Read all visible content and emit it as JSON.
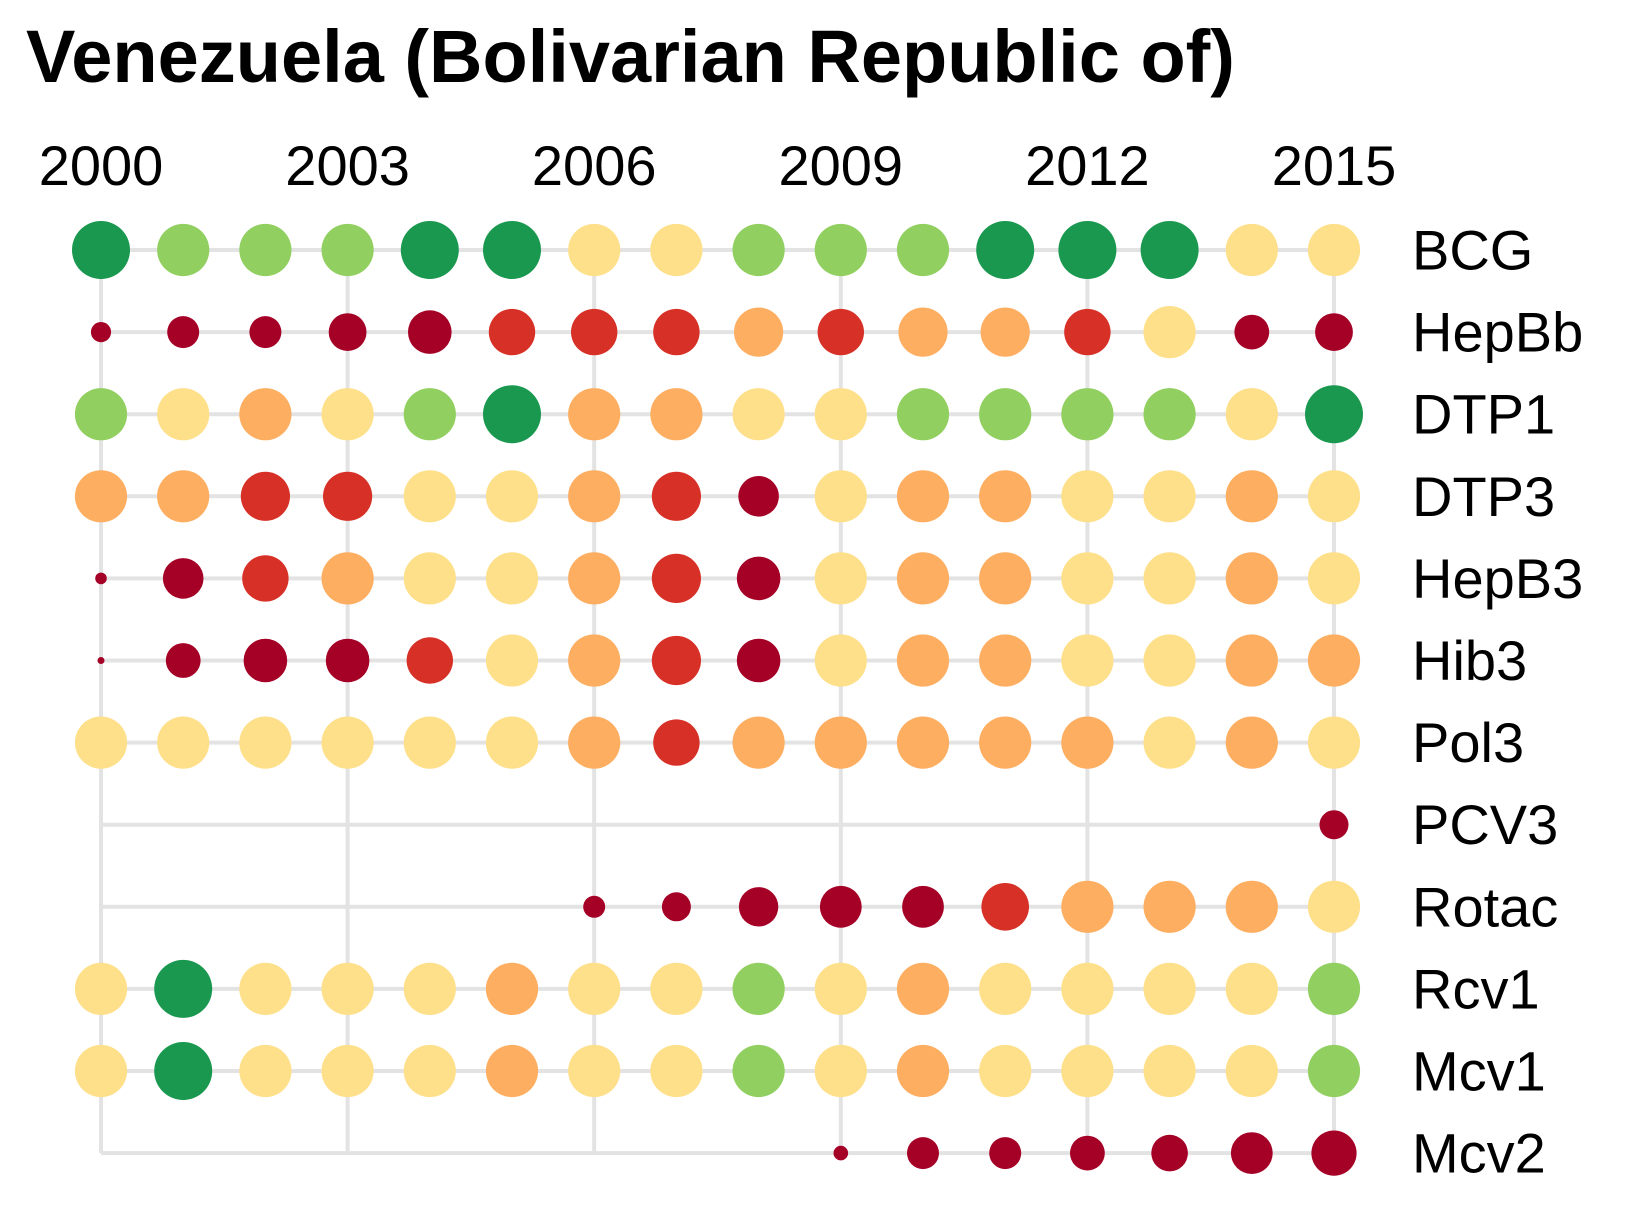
{
  "chart_data": {
    "type": "scatter",
    "title": "Venezuela (Bolivarian Republic of)",
    "x_years": [
      2000,
      2001,
      2002,
      2003,
      2004,
      2005,
      2006,
      2007,
      2008,
      2009,
      2010,
      2011,
      2012,
      2013,
      2014,
      2015
    ],
    "x_tick_labels": [
      "2000",
      "2003",
      "2006",
      "2009",
      "2012",
      "2015"
    ],
    "x_tick_values": [
      2000,
      2003,
      2006,
      2009,
      2012,
      2015
    ],
    "color_scale": {
      "1": "#a50026",
      "2": "#d73027",
      "3": "#fdae61",
      "4": "#fee08b",
      "5": "#91cf60",
      "6": "#1a9850"
    },
    "size_scale_note": "marker size increases with color level 1-6",
    "series": [
      {
        "name": "BCG",
        "start": 2000,
        "levels": [
          6,
          5,
          5,
          5,
          6,
          6,
          4,
          4,
          5,
          5,
          5,
          6,
          6,
          6,
          4,
          4
        ]
      },
      {
        "name": "HepBb",
        "start": 2000,
        "levels": [
          1,
          1,
          1,
          1,
          1,
          2,
          2,
          2,
          3,
          2,
          3,
          3,
          2,
          4,
          1,
          1
        ],
        "sizes": [
          0.35,
          0.55,
          0.55,
          0.65,
          0.75,
          0.8,
          0.8,
          0.8,
          0.85,
          0.8,
          0.85,
          0.85,
          0.8,
          0.9,
          0.6,
          0.65
        ]
      },
      {
        "name": "DTP1",
        "start": 2000,
        "levels": [
          5,
          4,
          3,
          4,
          5,
          6,
          3,
          3,
          4,
          4,
          5,
          5,
          5,
          5,
          4,
          6
        ]
      },
      {
        "name": "DTP3",
        "start": 2000,
        "levels": [
          3,
          3,
          2,
          2,
          4,
          4,
          3,
          2,
          1,
          4,
          3,
          3,
          4,
          4,
          3,
          4
        ],
        "sizes": [
          0.9,
          0.9,
          0.85,
          0.85,
          0.9,
          0.9,
          0.9,
          0.85,
          0.7,
          0.9,
          0.9,
          0.9,
          0.9,
          0.9,
          0.9,
          0.9
        ]
      },
      {
        "name": "HepB3",
        "start": 2000,
        "levels": [
          1,
          1,
          2,
          3,
          4,
          4,
          3,
          2,
          1,
          4,
          3,
          3,
          4,
          4,
          3,
          4
        ],
        "sizes": [
          0.2,
          0.7,
          0.8,
          0.9,
          0.9,
          0.9,
          0.9,
          0.85,
          0.75,
          0.9,
          0.9,
          0.9,
          0.9,
          0.9,
          0.9,
          0.9
        ]
      },
      {
        "name": "Hib3",
        "start": 2000,
        "levels": [
          1,
          1,
          1,
          1,
          2,
          4,
          3,
          2,
          1,
          4,
          3,
          3,
          4,
          4,
          3,
          3
        ],
        "sizes": [
          0.12,
          0.6,
          0.75,
          0.75,
          0.8,
          0.9,
          0.9,
          0.85,
          0.75,
          0.9,
          0.9,
          0.9,
          0.9,
          0.9,
          0.9,
          0.9
        ]
      },
      {
        "name": "Pol3",
        "start": 2000,
        "levels": [
          4,
          4,
          4,
          4,
          4,
          4,
          3,
          2,
          3,
          3,
          3,
          3,
          3,
          4,
          3,
          4
        ]
      },
      {
        "name": "PCV3",
        "start": 2015,
        "levels": [
          1
        ],
        "sizes": [
          0.5
        ]
      },
      {
        "name": "Rotac",
        "start": 2006,
        "levels": [
          1,
          1,
          1,
          1,
          1,
          2,
          3,
          3,
          3,
          4
        ],
        "sizes": [
          0.38,
          0.5,
          0.68,
          0.72,
          0.72,
          0.82,
          0.9,
          0.9,
          0.9,
          0.9
        ]
      },
      {
        "name": "Rcv1",
        "start": 2000,
        "levels": [
          4,
          6,
          4,
          4,
          4,
          3,
          4,
          4,
          5,
          4,
          3,
          4,
          4,
          4,
          4,
          5
        ]
      },
      {
        "name": "Mcv1",
        "start": 2000,
        "levels": [
          4,
          6,
          4,
          4,
          4,
          3,
          4,
          4,
          5,
          4,
          3,
          4,
          4,
          4,
          4,
          5
        ]
      },
      {
        "name": "Mcv2",
        "start": 2009,
        "levels": [
          1,
          1,
          1,
          1,
          1,
          1,
          1
        ],
        "sizes": [
          0.25,
          0.55,
          0.55,
          0.6,
          0.63,
          0.72,
          0.78
        ]
      }
    ]
  }
}
